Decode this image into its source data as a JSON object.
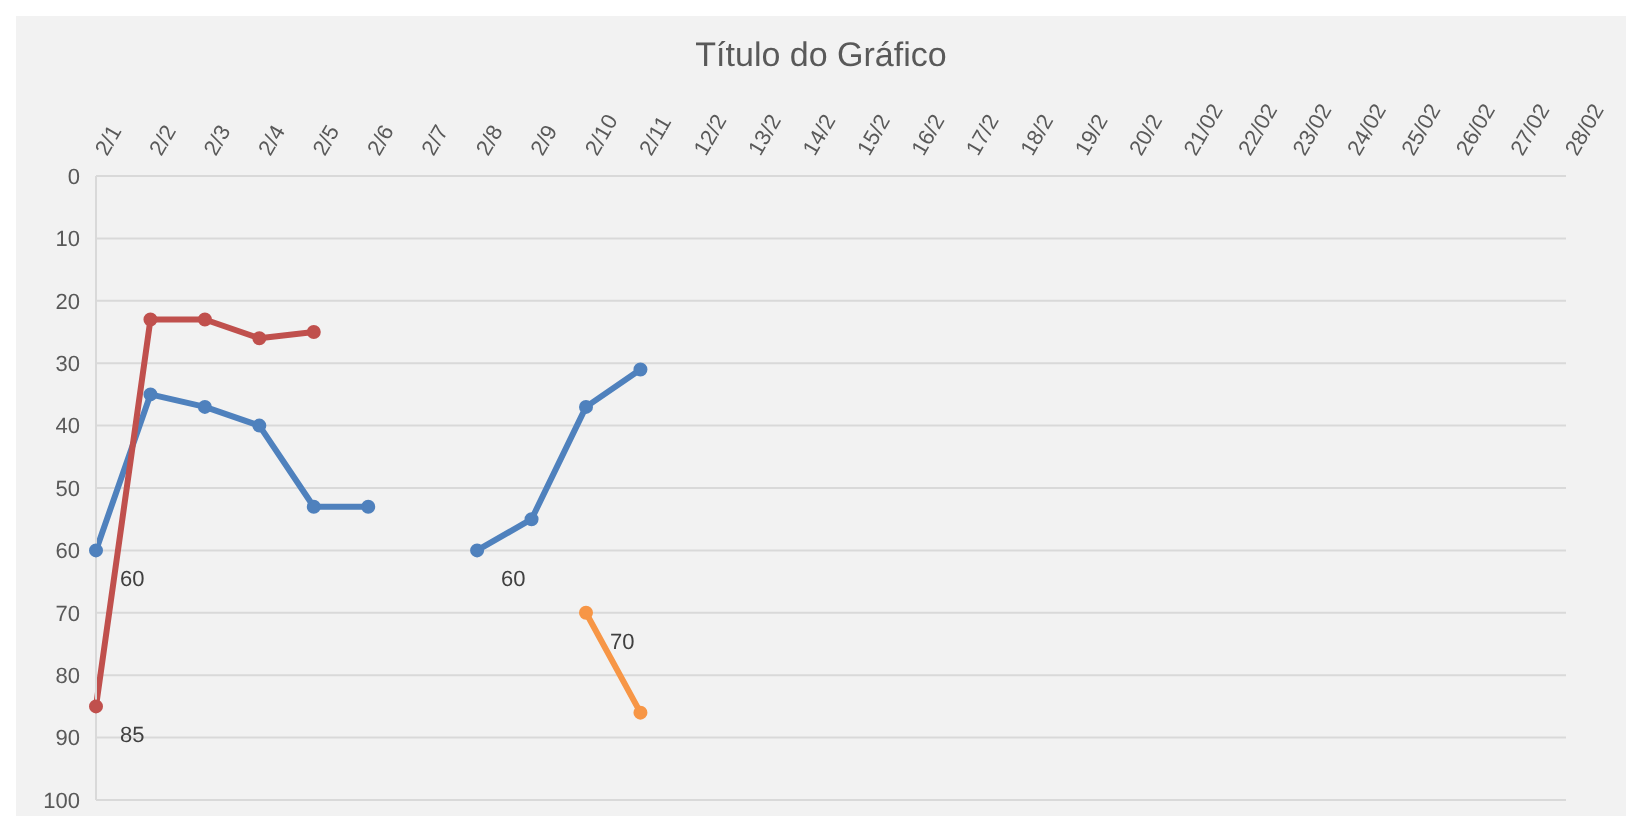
{
  "chart_data": {
    "type": "line",
    "title": "Título do Gráfico",
    "categories": [
      "2/1",
      "2/2",
      "2/3",
      "2/4",
      "2/5",
      "2/6",
      "2/7",
      "2/8",
      "2/9",
      "2/10",
      "2/11",
      "12/2",
      "13/2",
      "14/2",
      "15/2",
      "16/2",
      "17/2",
      "18/2",
      "19/2",
      "20/2",
      "21/02",
      "22/02",
      "23/02",
      "24/02",
      "25/02",
      "26/02",
      "27/02",
      "28/02"
    ],
    "series": [
      {
        "color": "#4f81bd",
        "values": [
          60,
          35,
          37,
          40,
          53,
          53,
          null,
          60,
          55,
          37,
          31,
          null,
          null,
          null,
          null,
          null,
          null,
          null,
          null,
          null,
          null,
          null,
          null,
          null,
          null,
          null,
          null,
          null
        ],
        "value_labels": [
          "60",
          null,
          null,
          null,
          null,
          null,
          null,
          "60",
          null,
          null,
          null,
          null,
          null,
          null,
          null,
          null,
          null,
          null,
          null,
          null,
          null,
          null,
          null,
          null,
          null,
          null,
          null,
          null
        ]
      },
      {
        "color": "#c0504d",
        "values": [
          85,
          23,
          23,
          26,
          25,
          null,
          null,
          null,
          null,
          null,
          null,
          null,
          null,
          null,
          null,
          null,
          null,
          null,
          null,
          null,
          null,
          null,
          null,
          null,
          null,
          null,
          null,
          null
        ],
        "value_labels": [
          "85",
          null,
          null,
          null,
          null,
          null,
          null,
          null,
          null,
          null,
          null,
          null,
          null,
          null,
          null,
          null,
          null,
          null,
          null,
          null,
          null,
          null,
          null,
          null,
          null,
          null,
          null,
          null
        ]
      },
      {
        "color": "#f79646",
        "values": [
          null,
          null,
          null,
          null,
          null,
          null,
          null,
          null,
          null,
          70,
          86,
          null,
          null,
          null,
          null,
          null,
          null,
          null,
          null,
          null,
          null,
          null,
          null,
          null,
          null,
          null,
          null,
          null
        ],
        "value_labels": [
          null,
          null,
          null,
          null,
          null,
          null,
          null,
          null,
          null,
          "70",
          null,
          null,
          null,
          null,
          null,
          null,
          null,
          null,
          null,
          null,
          null,
          null,
          null,
          null,
          null,
          null,
          null,
          null
        ]
      }
    ],
    "ylim": [
      100,
      0
    ],
    "yticks": [
      0,
      10,
      20,
      30,
      40,
      50,
      60,
      70,
      80,
      90,
      100
    ],
    "grid": "y",
    "marker": "circle",
    "line_style": "solid"
  }
}
